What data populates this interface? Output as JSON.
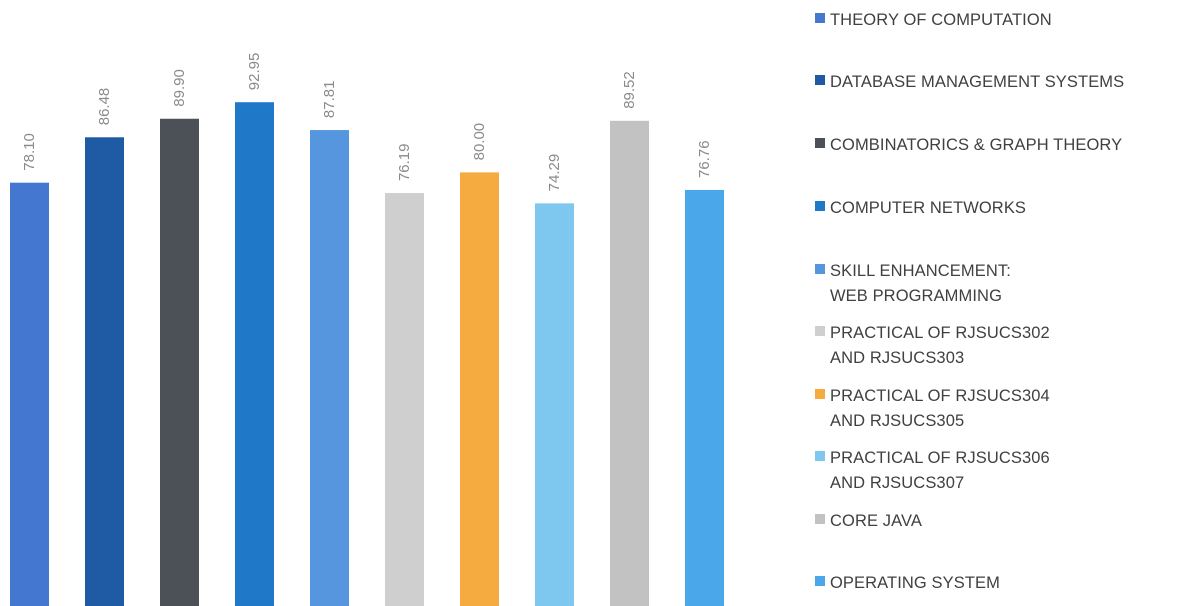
{
  "chart_data": {
    "type": "bar",
    "categories": [
      "THEORY OF COMPUTATION",
      "DATABASE MANAGEMENT SYSTEMS",
      "COMBINATORICS & GRAPH THEORY",
      "COMPUTER NETWORKS",
      "SKILL ENHANCEMENT: WEB PROGRAMMING",
      "PRACTICAL OF RJSUCS302 AND RJSUCS303",
      "PRACTICAL OF RJSUCS304 AND RJSUCS305",
      "PRACTICAL OF RJSUCS306 AND RJSUCS307",
      "CORE JAVA",
      "OPERATING SYSTEM"
    ],
    "values": [
      78.1,
      86.48,
      89.9,
      92.95,
      87.81,
      76.19,
      80.0,
      74.29,
      89.52,
      76.76
    ],
    "value_labels": [
      "78.10",
      "86.48",
      "89.90",
      "92.95",
      "87.81",
      "76.19",
      "80.00",
      "74.29",
      "89.52",
      "76.76"
    ],
    "colors": [
      "#4477cf",
      "#1f5aa5",
      "#4b5156",
      "#1f78c8",
      "#5596de",
      "#cfcfcf",
      "#f5ab3f",
      "#7ec8ef",
      "#c2c2c2",
      "#4aa7ea"
    ],
    "title": "",
    "xlabel": "",
    "ylabel": "",
    "grid": false,
    "legend_position": "right"
  },
  "legend": {
    "items": [
      {
        "lines": [
          "THEORY OF COMPUTATION"
        ],
        "color": "#4477cf"
      },
      {
        "lines": [
          "DATABASE MANAGEMENT SYSTEMS"
        ],
        "color": "#1f5aa5"
      },
      {
        "lines": [
          "COMBINATORICS & GRAPH THEORY"
        ],
        "color": "#4b5156"
      },
      {
        "lines": [
          "COMPUTER NETWORKS"
        ],
        "color": "#1f78c8"
      },
      {
        "lines": [
          "SKILL ENHANCEMENT:",
          "WEB PROGRAMMING"
        ],
        "color": "#5596de"
      },
      {
        "lines": [
          "PRACTICAL OF RJSUCS302",
          "AND RJSUCS303"
        ],
        "color": "#cfcfcf"
      },
      {
        "lines": [
          "PRACTICAL OF RJSUCS304",
          "AND RJSUCS305"
        ],
        "color": "#f5ab3f"
      },
      {
        "lines": [
          "PRACTICAL OF RJSUCS306",
          "AND RJSUCS307"
        ],
        "color": "#7ec8ef"
      },
      {
        "lines": [
          "CORE JAVA"
        ],
        "color": "#c2c2c2"
      },
      {
        "lines": [
          "OPERATING SYSTEM"
        ],
        "color": "#4aa7ea"
      }
    ]
  }
}
